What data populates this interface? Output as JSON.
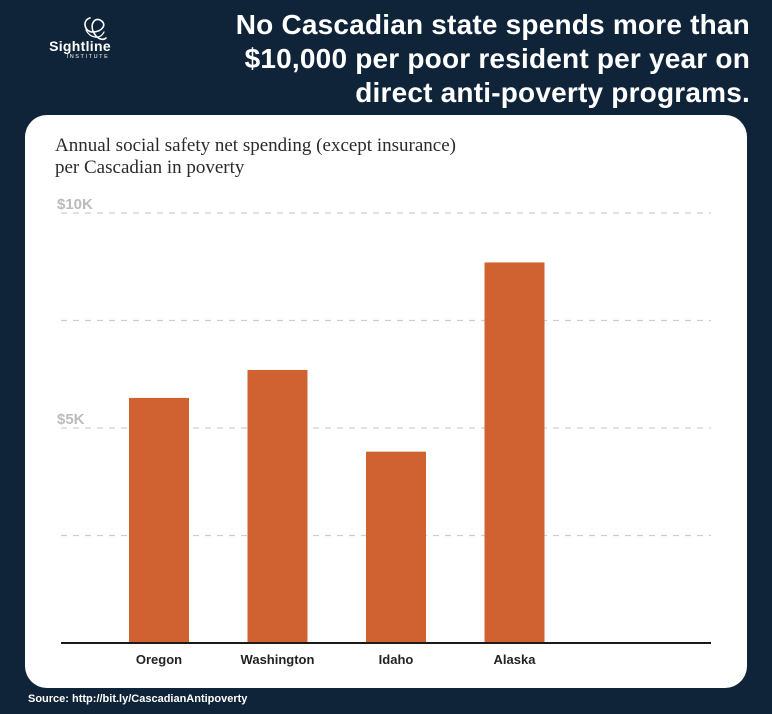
{
  "brand": {
    "name": "Sightline",
    "sub": "INSTITUTE",
    "icon": "sightline-swirl-icon"
  },
  "headline": {
    "line1": "No Cascadian state spends more than",
    "line2": "$10,000 per poor resident per year on",
    "line3": "direct anti-poverty programs."
  },
  "source": "Source: http://bit.ly/CascadianAntipoverty",
  "colors": {
    "bar": "#d06130",
    "background": "#0f2438",
    "card": "#ffffff",
    "tick": "#bbbbbb"
  },
  "chart_data": {
    "type": "bar",
    "title_line1": "Annual social safety net spending (except insurance)",
    "title_line2": "per Cascadian in poverty",
    "categories": [
      "Oregon",
      "Washington",
      "Idaho",
      "Alaska"
    ],
    "values": [
      5700,
      6350,
      4450,
      8850
    ],
    "ylim": [
      0,
      10000
    ],
    "yticks": [
      0,
      2500,
      5000,
      7500,
      10000
    ],
    "ytick_labels": [
      {
        "value": 10000,
        "label": "$10K"
      },
      {
        "value": 5000,
        "label": "$5K"
      }
    ],
    "xlabel": "",
    "ylabel": "",
    "grid": true
  }
}
